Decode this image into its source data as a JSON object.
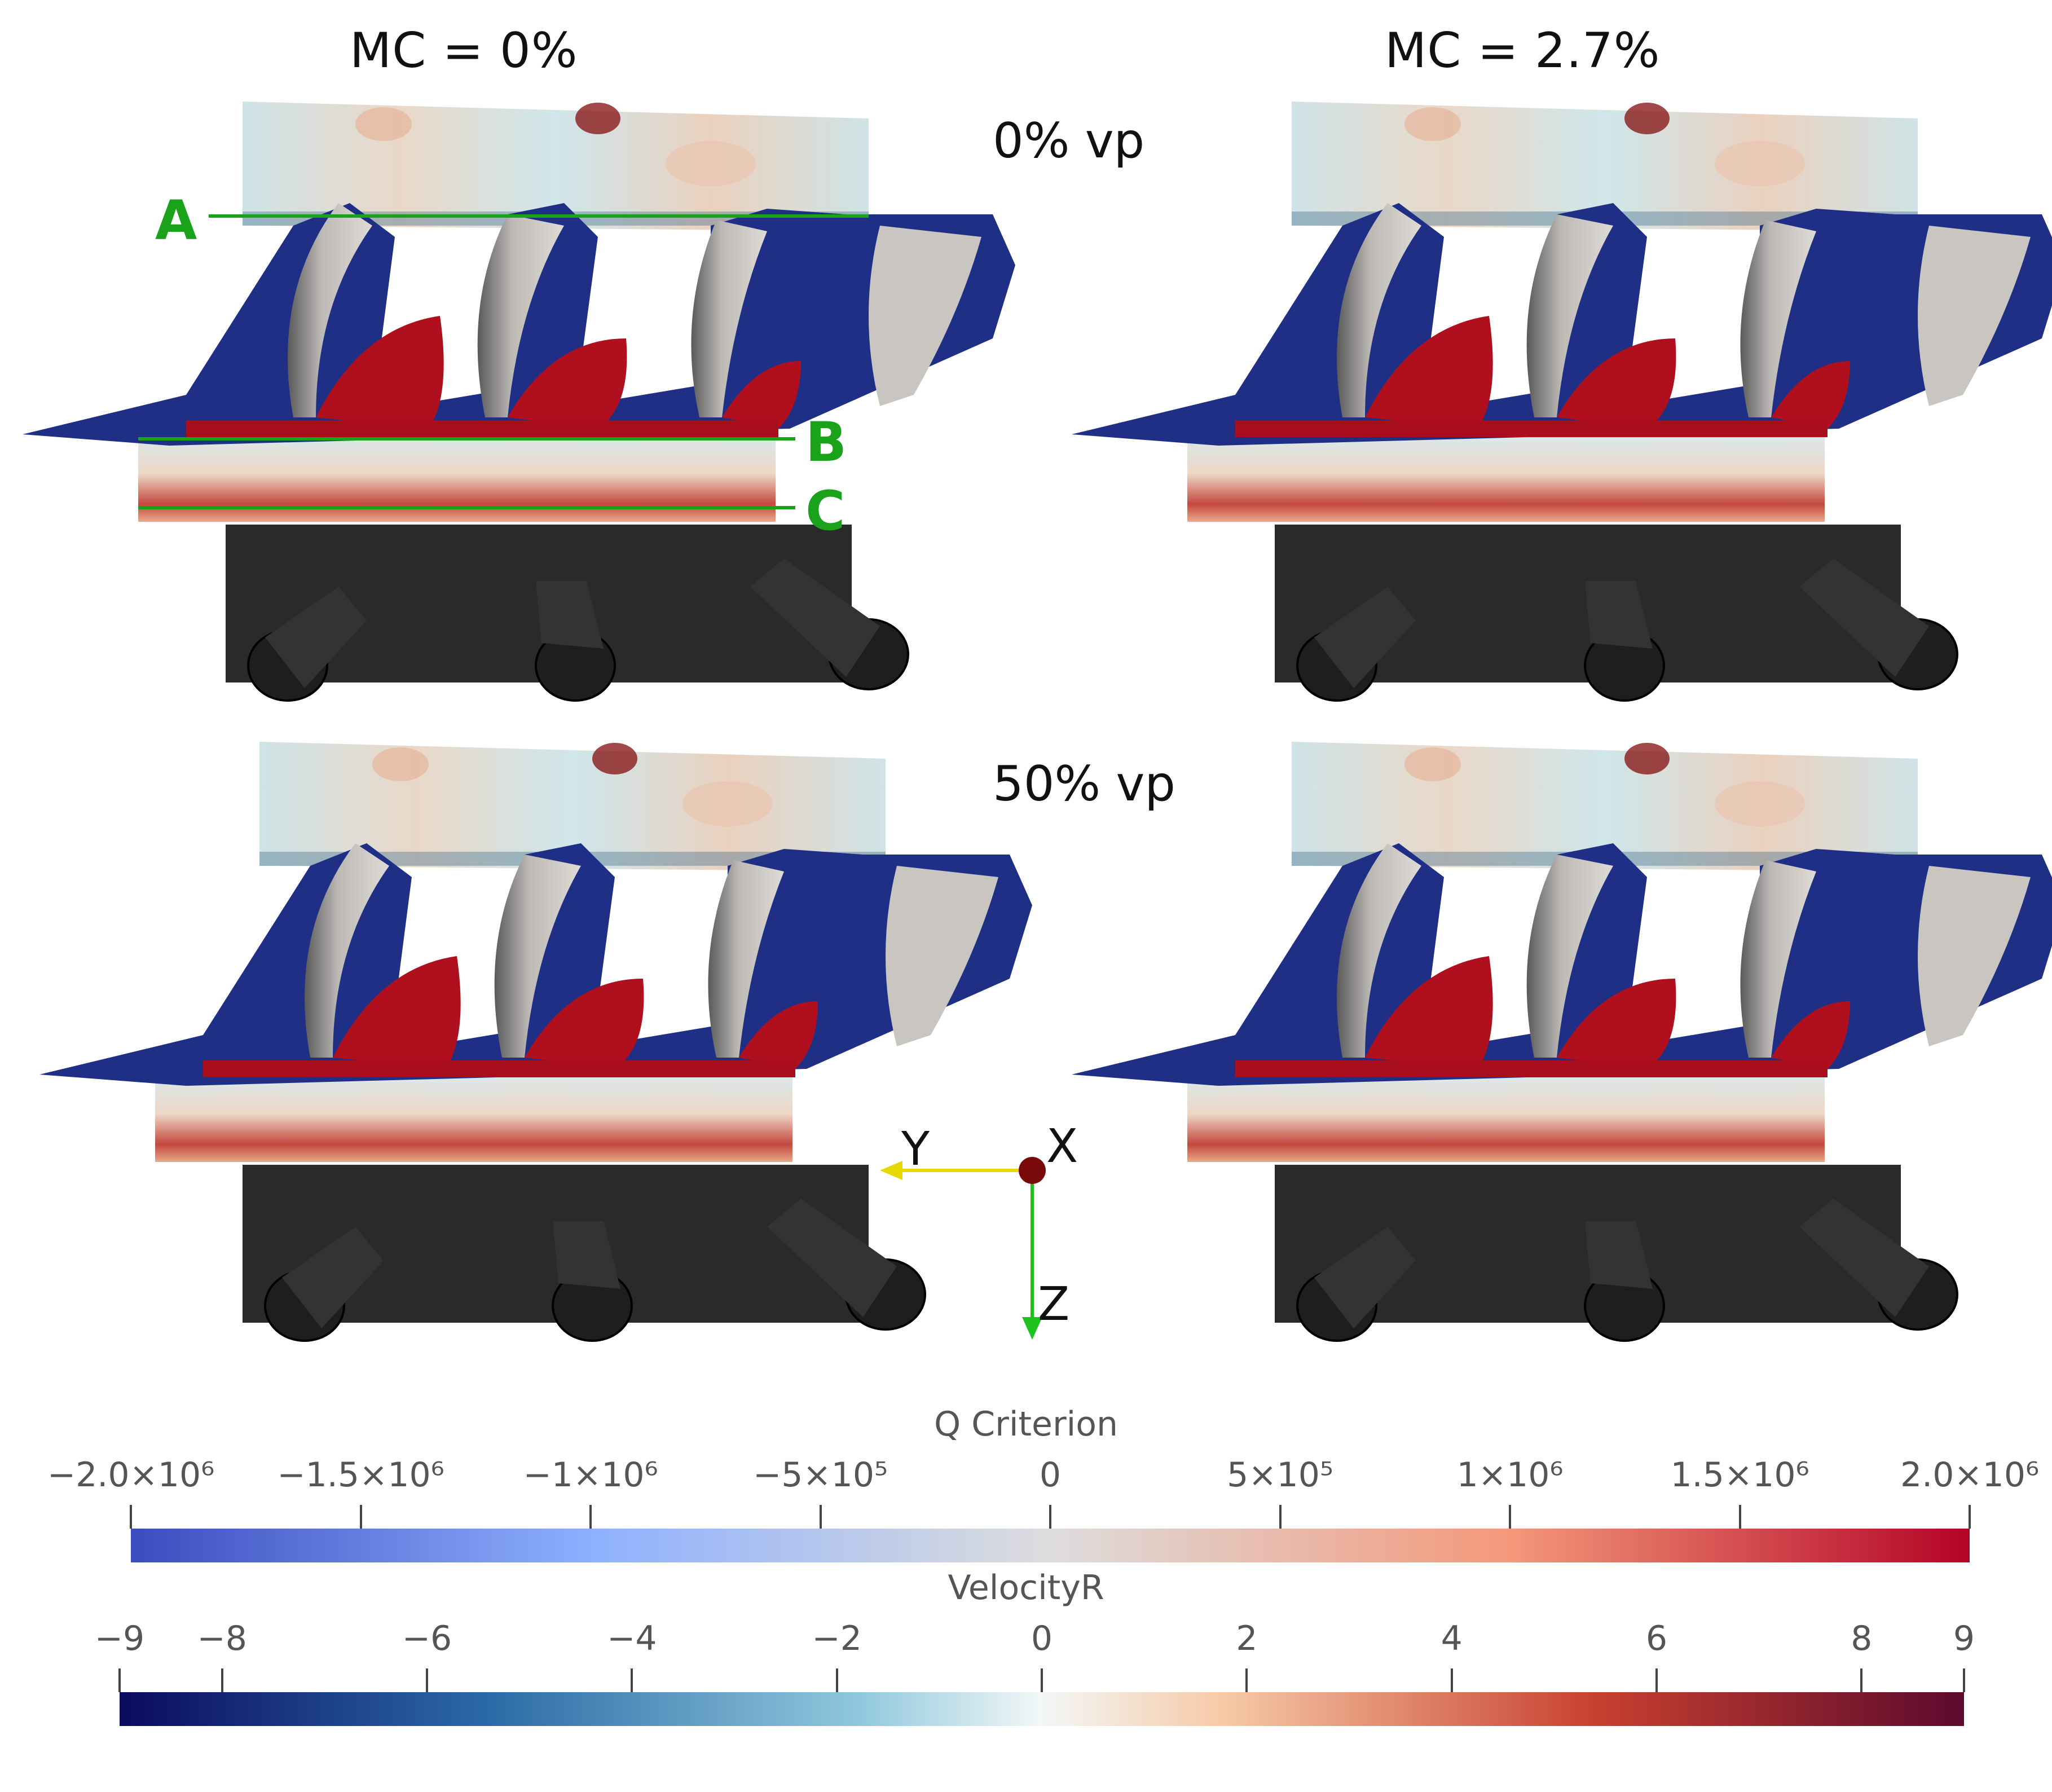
{
  "columns": [
    "MC = 0%",
    "MC = 2.7%"
  ],
  "rows": [
    "0% vp",
    "50% vp"
  ],
  "markers": [
    "A",
    "B",
    "C"
  ],
  "axes": {
    "y": "Y",
    "x": "X",
    "z": "Z"
  },
  "colorbars": [
    {
      "title": "Q Criterion",
      "colormap": "cool-warm",
      "min": -2000000,
      "max": 2000000,
      "ticks": [
        {
          "value": -2000000,
          "label": "−2.0×10⁶"
        },
        {
          "value": -1500000,
          "label": "−1.5×10⁶"
        },
        {
          "value": -1000000,
          "label": "−1×10⁶"
        },
        {
          "value": -500000,
          "label": "−5×10⁵"
        },
        {
          "value": 0,
          "label": "0"
        },
        {
          "value": 500000,
          "label": "5×10⁵"
        },
        {
          "value": 1000000,
          "label": "1×10⁶"
        },
        {
          "value": 1500000,
          "label": "1.5×10⁶"
        },
        {
          "value": 2000000,
          "label": "2.0×10⁶"
        }
      ]
    },
    {
      "title": "VelocityR",
      "colormap": "blue-white-red (diverging)",
      "min": -9,
      "max": 9,
      "ticks": [
        {
          "value": -9,
          "label": "−9"
        },
        {
          "value": -8,
          "label": "−8"
        },
        {
          "value": -6,
          "label": "−6"
        },
        {
          "value": -4,
          "label": "−4"
        },
        {
          "value": -2,
          "label": "−2"
        },
        {
          "value": 0,
          "label": "0"
        },
        {
          "value": 2,
          "label": "2"
        },
        {
          "value": 4,
          "label": "4"
        },
        {
          "value": 6,
          "label": "6"
        },
        {
          "value": 8,
          "label": "8"
        },
        {
          "value": 9,
          "label": "9"
        }
      ]
    }
  ],
  "colors": {
    "marker_green": "#1aa31a",
    "vortex_blue": "#1f2f86",
    "vortex_red": "#b0101e",
    "blade_grey": "#c9c6c2",
    "burner_black": "#2a2a2a"
  }
}
